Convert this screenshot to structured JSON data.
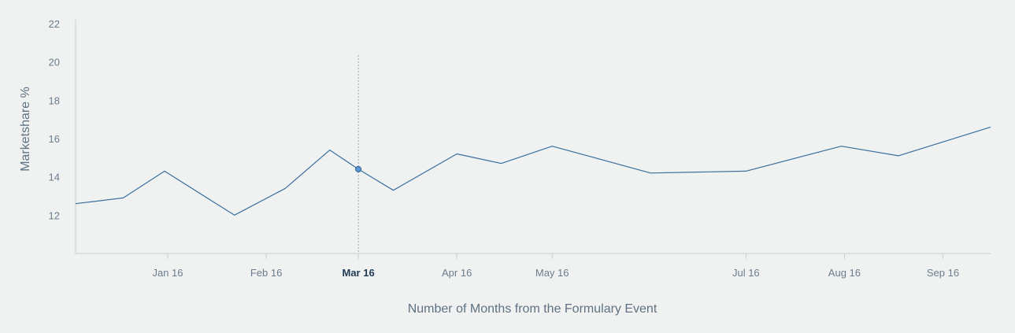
{
  "chart_data": {
    "type": "line",
    "xlabel": "Number of Months from the Formulary Event",
    "ylabel": "Marketshare %",
    "ylim": [
      10,
      22
    ],
    "yticks": [
      12,
      14,
      16,
      18,
      20,
      22
    ],
    "xlim": [
      "2015-12-03",
      "2016-09-16"
    ],
    "xticks": [
      {
        "label": "Jan 16",
        "date": "2016-01-01"
      },
      {
        "label": "Feb 16",
        "date": "2016-02-01"
      },
      {
        "label": "Mar 16",
        "date": "2016-03-01"
      },
      {
        "label": "Apr 16",
        "date": "2016-04-01"
      },
      {
        "label": "May 16",
        "date": "2016-05-01"
      },
      {
        "label": "Jul 16",
        "date": "2016-07-01"
      },
      {
        "label": "Aug 16",
        "date": "2016-08-01"
      },
      {
        "label": "Sep 16",
        "date": "2016-09-01"
      }
    ],
    "active_tick": "Mar 16",
    "highlight_point": {
      "x": "2016-03-01",
      "y": 14.4
    },
    "series": [
      {
        "color": "#3a6f9e",
        "points": [
          {
            "x": "2015-12-03",
            "y": 12.6
          },
          {
            "x": "2015-12-18",
            "y": 12.9
          },
          {
            "x": "2015-12-31",
            "y": 14.3
          },
          {
            "x": "2016-01-22",
            "y": 12.0
          },
          {
            "x": "2016-02-07",
            "y": 13.4
          },
          {
            "x": "2016-02-21",
            "y": 15.4
          },
          {
            "x": "2016-03-01",
            "y": 14.4
          },
          {
            "x": "2016-03-12",
            "y": 13.3
          },
          {
            "x": "2016-04-01",
            "y": 15.2
          },
          {
            "x": "2016-04-15",
            "y": 14.7
          },
          {
            "x": "2016-05-01",
            "y": 15.6
          },
          {
            "x": "2016-06-01",
            "y": 14.2
          },
          {
            "x": "2016-07-01",
            "y": 14.3
          },
          {
            "x": "2016-07-31",
            "y": 15.6
          },
          {
            "x": "2016-08-18",
            "y": 15.1
          },
          {
            "x": "2016-09-16",
            "y": 16.6
          }
        ]
      }
    ],
    "grid": false,
    "colors": {
      "axis": "#c8cdd2",
      "guide": "#9aa5ae",
      "marker_fill": "#5b9bd5",
      "marker_stroke": "#2f5f8a"
    }
  }
}
